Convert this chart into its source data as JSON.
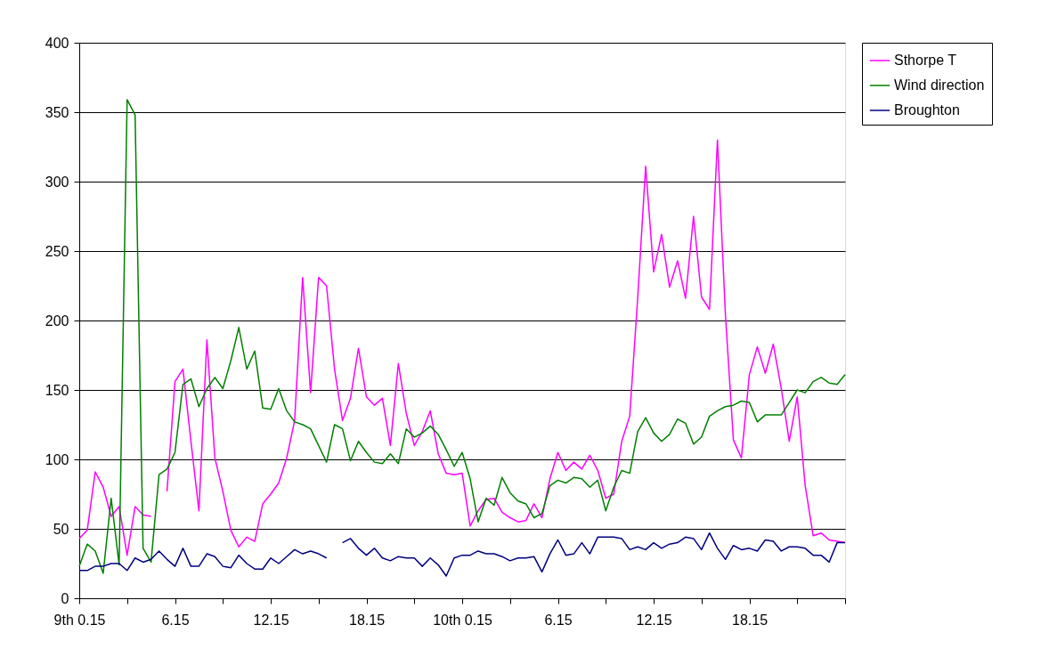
{
  "chart_data": {
    "type": "line",
    "categories": [
      "9th 0.15",
      null,
      null,
      null,
      null,
      null,
      null,
      null,
      null,
      null,
      null,
      null,
      "6.15",
      null,
      null,
      null,
      null,
      null,
      null,
      null,
      null,
      null,
      null,
      null,
      "12.15",
      null,
      null,
      null,
      null,
      null,
      null,
      null,
      null,
      null,
      null,
      null,
      "18.15",
      null,
      null,
      null,
      null,
      null,
      null,
      null,
      null,
      null,
      null,
      null,
      "10th 0.15",
      null,
      null,
      null,
      null,
      null,
      null,
      null,
      null,
      null,
      null,
      null,
      "6.15",
      null,
      null,
      null,
      null,
      null,
      null,
      null,
      null,
      null,
      null,
      null,
      "12.15",
      null,
      null,
      null,
      null,
      null,
      null,
      null,
      null,
      null,
      null,
      null,
      "18.15",
      null,
      null,
      null,
      null,
      null,
      null,
      null,
      null,
      null,
      null,
      null,
      null
    ],
    "ylim": [
      0,
      400
    ],
    "yticks": [
      0,
      50,
      100,
      150,
      200,
      250,
      300,
      350,
      400
    ],
    "grid": "y",
    "legend": "right",
    "line_style": "solid",
    "marker": "none",
    "series": [
      {
        "name": "Sthorpe T",
        "color": "#ff00ff",
        "values": [
          43,
          49,
          91,
          80,
          59,
          66,
          31,
          66,
          60,
          59,
          null,
          77,
          156,
          165,
          113,
          63,
          186,
          101,
          77,
          49,
          37,
          44,
          41,
          68,
          75,
          83,
          101,
          128,
          231,
          148,
          231,
          225,
          165,
          128,
          144,
          180,
          145,
          139,
          144,
          110,
          169,
          133,
          110,
          120,
          135,
          104,
          90,
          89,
          90,
          52,
          63,
          71,
          72,
          62,
          58,
          55,
          56,
          68,
          58,
          86,
          105,
          92,
          98,
          93,
          103,
          92,
          72,
          75,
          113,
          131,
          216,
          311,
          235,
          262,
          224,
          243,
          216,
          275,
          217,
          208,
          330,
          204,
          114,
          101,
          161,
          181,
          162,
          183,
          151,
          113,
          145,
          81,
          45,
          47,
          42,
          41,
          40
        ]
      },
      {
        "name": "Wind direction",
        "color": "#008000",
        "values": [
          23,
          39,
          34,
          18,
          72,
          24,
          359,
          348,
          36,
          26,
          89,
          93,
          105,
          154,
          158,
          138,
          151,
          159,
          151,
          171,
          195,
          165,
          178,
          137,
          136,
          151,
          135,
          127,
          125,
          122,
          110,
          98,
          125,
          122,
          99,
          113,
          105,
          98,
          97,
          104,
          97,
          122,
          116,
          119,
          124,
          118,
          107,
          95,
          105,
          86,
          55,
          72,
          67,
          87,
          76,
          70,
          68,
          58,
          61,
          81,
          85,
          83,
          87,
          86,
          80,
          85,
          63,
          80,
          92,
          90,
          120,
          130,
          119,
          113,
          118,
          129,
          126,
          111,
          116,
          131,
          135,
          138,
          139,
          142,
          141,
          127,
          132,
          132,
          132,
          141,
          150,
          148,
          156,
          159,
          155,
          154,
          161
        ]
      },
      {
        "name": "Broughton",
        "color": "#000080",
        "values": [
          20,
          20,
          23,
          23,
          25,
          25,
          20,
          29,
          26,
          28,
          34,
          28,
          23,
          36,
          23,
          23,
          32,
          30,
          23,
          22,
          31,
          25,
          21,
          21,
          29,
          25,
          30,
          35,
          32,
          34,
          32,
          29,
          null,
          40,
          43,
          36,
          31,
          36,
          29,
          27,
          30,
          29,
          29,
          23,
          29,
          24,
          16,
          29,
          31,
          31,
          34,
          32,
          32,
          30,
          27,
          29,
          29,
          30,
          19,
          32,
          42,
          31,
          32,
          40,
          32,
          44,
          44,
          44,
          43,
          35,
          37,
          35,
          40,
          36,
          39,
          40,
          44,
          43,
          35,
          47,
          36,
          28,
          38,
          35,
          36,
          34,
          42,
          41,
          34,
          37,
          37,
          36,
          31,
          31,
          26,
          40,
          40
        ]
      }
    ]
  }
}
